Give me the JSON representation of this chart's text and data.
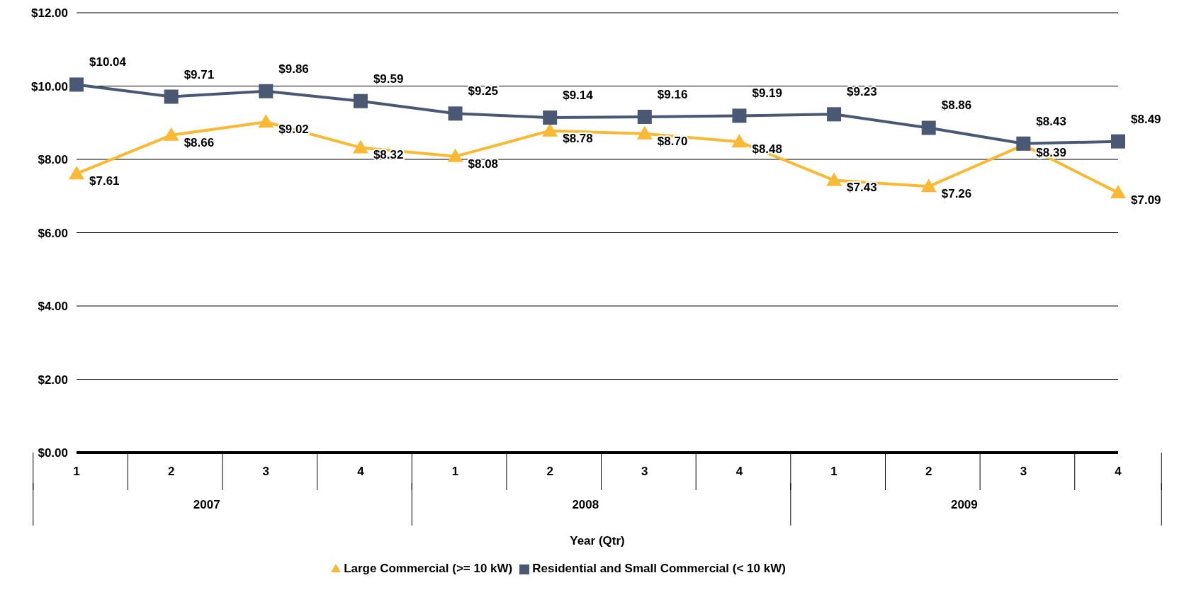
{
  "chart_data": {
    "type": "line",
    "xlabel": "Year (Qtr)",
    "categories": [
      "1",
      "2",
      "3",
      "4",
      "1",
      "2",
      "3",
      "4",
      "1",
      "2",
      "3",
      "4"
    ],
    "annotations": [
      "2007",
      "2008",
      "2009"
    ],
    "series": [
      {
        "name": "Large Commercial (>= 10 kW)",
        "color": "#f9b934",
        "marker": "triangle",
        "values": [
          7.61,
          8.66,
          9.02,
          8.32,
          8.08,
          8.78,
          8.7,
          8.48,
          7.43,
          7.26,
          8.39,
          7.09
        ],
        "value_labels": [
          "$7.61",
          "$8.66",
          "$9.02",
          "$8.32",
          "$8.08",
          "$8.78",
          "$8.70",
          "$8.48",
          "$7.43",
          "$7.26",
          "$8.39",
          "$7.09"
        ]
      },
      {
        "name": "Residential and Small Commercial (< 10 kW)",
        "color": "#4a5874",
        "marker": "square",
        "values": [
          10.04,
          9.71,
          9.86,
          9.59,
          9.25,
          9.14,
          9.16,
          9.19,
          9.23,
          8.86,
          8.43,
          8.49
        ],
        "value_labels": [
          "$10.04",
          "$9.71",
          "$9.86",
          "$9.59",
          "$9.25",
          "$9.14",
          "$9.16",
          "$9.19",
          "$9.23",
          "$8.86",
          "$8.43",
          "$8.49"
        ]
      }
    ],
    "ylim": [
      0,
      12
    ],
    "yticks": [
      {
        "value": 0,
        "label": "$0.00"
      },
      {
        "value": 2,
        "label": "$2.00"
      },
      {
        "value": 4,
        "label": "$4.00"
      },
      {
        "value": 6,
        "label": "$6.00"
      },
      {
        "value": 8,
        "label": "$8.00"
      },
      {
        "value": 10,
        "label": "$10.00"
      },
      {
        "value": 12,
        "label": "$12.00"
      }
    ],
    "grid": "y",
    "legend": "bottom",
    "line_style": "solid"
  }
}
